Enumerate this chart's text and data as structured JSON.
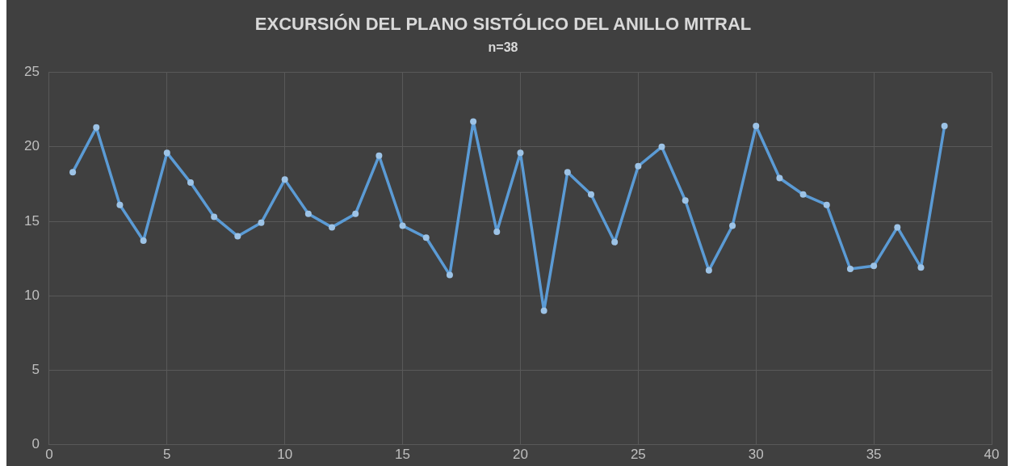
{
  "chart_data": {
    "type": "line",
    "title": "EXCURSIÓN DEL PLANO SISTÓLICO DEL ANILLO MITRAL",
    "subtitle": "n=38",
    "x": [
      1,
      2,
      3,
      4,
      5,
      6,
      7,
      8,
      9,
      10,
      11,
      12,
      13,
      14,
      15,
      16,
      17,
      18,
      19,
      20,
      21,
      22,
      23,
      24,
      25,
      26,
      27,
      28,
      29,
      30,
      31,
      32,
      33,
      34,
      35,
      36,
      37,
      38
    ],
    "series": [
      {
        "color": "#5b9bd5",
        "values": [
          18.3,
          21.3,
          16.1,
          13.7,
          19.6,
          17.6,
          15.3,
          14.0,
          14.9,
          17.8,
          15.5,
          14.6,
          15.5,
          19.4,
          14.7,
          13.9,
          11.4,
          21.7,
          14.3,
          19.6,
          9.0,
          18.3,
          16.8,
          13.6,
          18.7,
          20.0,
          16.4,
          11.7,
          14.7,
          21.4,
          17.9,
          16.8,
          16.1,
          11.8,
          12.0,
          14.6,
          11.9,
          21.4
        ]
      }
    ],
    "xlim": [
      0,
      40
    ],
    "xticks": [
      0,
      5,
      10,
      15,
      20,
      25,
      30,
      35,
      40
    ],
    "ylim": [
      0,
      25
    ],
    "yticks": [
      0,
      5,
      10,
      15,
      20,
      25
    ],
    "grid": true,
    "legend": false,
    "marker": "circle",
    "line_style": "solid"
  }
}
